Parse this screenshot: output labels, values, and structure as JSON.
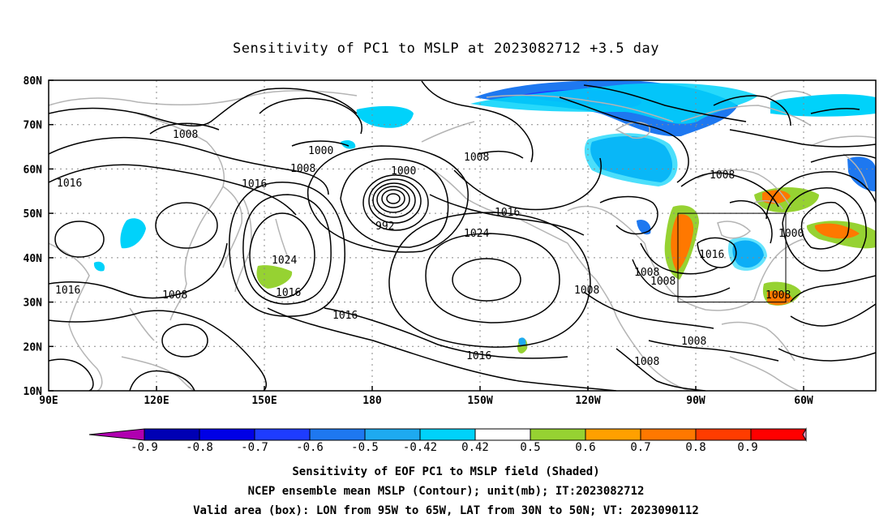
{
  "title": "Sensitivity of PC1 to MSLP at 2023082712 +3.5 day",
  "lat_labels": [
    "80N",
    "70N",
    "60N",
    "50N",
    "40N",
    "30N",
    "20N",
    "10N"
  ],
  "lon_labels": [
    "90E",
    "120E",
    "150E",
    "180",
    "150W",
    "120W",
    "90W",
    "60W"
  ],
  "contour_labels": [
    "1008",
    "1000",
    "1008",
    "1000",
    "1016",
    "1008",
    "992",
    "1016",
    "1016",
    "1024",
    "1024",
    "1016",
    "1016",
    "1008",
    "1016",
    "1008",
    "1008",
    "1016",
    "1008",
    "1000",
    "1008",
    "1008",
    "1016",
    "1008",
    "1008"
  ],
  "colorbar": {
    "labels": [
      "-0.9",
      "-0.8",
      "-0.7",
      "-0.6",
      "-0.5",
      "-0.42",
      "0.42",
      "0.5",
      "0.6",
      "0.7",
      "0.8",
      "0.9"
    ],
    "colors": [
      "#b000b0",
      "#0000b4",
      "#0000e6",
      "#1e3cff",
      "#1e78f0",
      "#1eaaf0",
      "#00d2fa",
      "#ffffff",
      "#96d232",
      "#ffa000",
      "#ff7800",
      "#ff3c00",
      "#ff0000",
      "#ff9fc8"
    ]
  },
  "captions": [
    "Sensitivity of EOF PC1 to MSLP field (Shaded)",
    "NCEP ensemble mean MSLP (Contour); unit(mb); IT:2023082712",
    "Valid area (box): LON from 95W to 65W, LAT from 30N to 50N; VT: 2023090112"
  ]
}
